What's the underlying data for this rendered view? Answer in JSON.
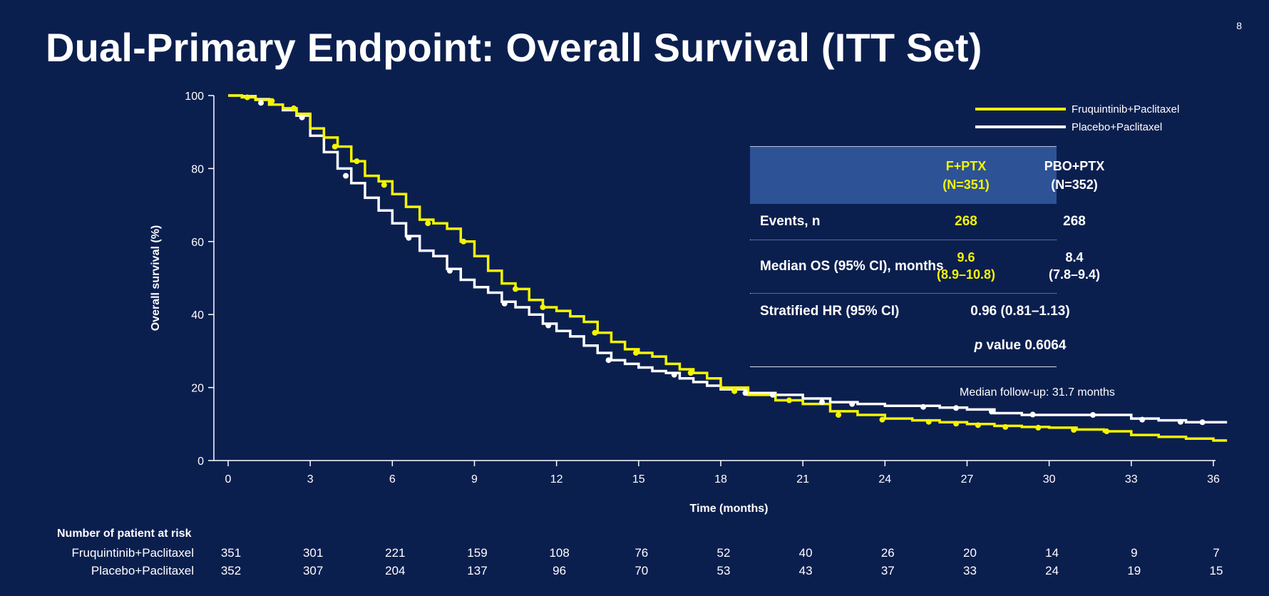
{
  "page_number": "8",
  "title": "Dual-Primary Endpoint: Overall Survival (ITT Set)",
  "colors": {
    "background": "#0b1f4f",
    "fruquintinib": "#f5f500",
    "placebo": "#ffffff",
    "table_header": "#2e5296"
  },
  "chart_data": {
    "type": "line",
    "subtype": "kaplan-meier step plot",
    "xlabel": "Time (months)",
    "ylabel": "Overall survival (%)",
    "xlim": [
      0,
      36.6
    ],
    "ylim": [
      0,
      100
    ],
    "xticks": [
      0,
      3,
      6,
      9,
      12,
      15,
      18,
      21,
      24,
      27,
      30,
      33,
      36
    ],
    "yticks": [
      0,
      20,
      40,
      60,
      80,
      100
    ],
    "legend": [
      "Fruquintinib+Paclitaxel",
      "Placebo+Paclitaxel"
    ],
    "legend_position": "top-right",
    "series": [
      {
        "name": "Fruquintinib+Paclitaxel",
        "color": "#f5f500",
        "x": [
          0,
          0.5,
          1,
          1.5,
          2,
          2.5,
          3,
          3.5,
          4,
          4.5,
          5,
          5.5,
          6,
          6.5,
          7,
          7.5,
          8,
          8.5,
          9,
          9.5,
          10,
          10.5,
          11,
          11.5,
          12,
          12.5,
          13,
          13.5,
          14,
          14.5,
          15,
          15.5,
          16,
          16.5,
          17,
          17.5,
          18,
          19,
          20,
          21,
          22,
          23,
          24,
          25,
          26,
          27,
          28,
          29,
          30,
          31,
          32,
          33,
          34,
          35,
          36,
          36.5
        ],
        "y": [
          100,
          99.5,
          98.8,
          97.5,
          96.5,
          95,
          91,
          88.5,
          86,
          82,
          78,
          76.5,
          73,
          69.5,
          66,
          65,
          63.5,
          60,
          56,
          52,
          48.5,
          47,
          44,
          42,
          41,
          39.5,
          38,
          35,
          32.5,
          30.5,
          29.5,
          28.5,
          26.5,
          25,
          24,
          22.5,
          20,
          18,
          16.5,
          15.5,
          13.5,
          12.5,
          11.5,
          11,
          10.5,
          10,
          9.5,
          9.2,
          9,
          8.5,
          8,
          7,
          6.5,
          6,
          5.5,
          5.5
        ]
      },
      {
        "name": "Placebo+Paclitaxel",
        "color": "#ffffff",
        "x": [
          0,
          0.5,
          1,
          1.5,
          2,
          2.5,
          3,
          3.5,
          4,
          4.5,
          5,
          5.5,
          6,
          6.5,
          7,
          7.5,
          8,
          8.5,
          9,
          9.5,
          10,
          10.5,
          11,
          11.5,
          12,
          12.5,
          13,
          13.5,
          14,
          14.5,
          15,
          15.5,
          16,
          16.5,
          17,
          17.5,
          18,
          19,
          20,
          21,
          22,
          23,
          24,
          25,
          26,
          27,
          28,
          29,
          30,
          31,
          32,
          33,
          34,
          35,
          36,
          36.5
        ],
        "y": [
          100,
          99.8,
          99,
          97.5,
          96,
          94.5,
          89,
          84.5,
          80,
          76,
          72,
          68.5,
          65,
          61.5,
          57.5,
          56,
          52.5,
          49.5,
          47.5,
          46,
          43.5,
          42,
          40,
          37.5,
          35.5,
          34,
          31.5,
          29.5,
          27.5,
          26.5,
          25.5,
          24.5,
          24,
          22.5,
          21.5,
          20.5,
          19.5,
          18.5,
          18,
          17,
          16,
          15.5,
          15,
          15,
          14.5,
          14,
          13,
          12.5,
          12.5,
          12.5,
          12.5,
          11.5,
          11,
          10.5,
          10.5,
          10.5
        ]
      }
    ],
    "censor_marks": [
      {
        "series": "Fruquintinib+Paclitaxel",
        "x": [
          0.7,
          1.6,
          2.4,
          3.9,
          4.7,
          5.7,
          7.3,
          8.6,
          10.5,
          11.5,
          13.4,
          14.9,
          16.9,
          18.5,
          20.5,
          22.3,
          23.9,
          25.6,
          26.6,
          27.4,
          28.4,
          29.6,
          30.9,
          32.1
        ],
        "y": [
          99.5,
          98.5,
          96.5,
          86,
          82,
          75.5,
          65,
          60,
          47,
          42,
          35,
          29.5,
          24,
          19,
          16.5,
          12.5,
          11.2,
          10.6,
          10.1,
          9.7,
          9.2,
          9,
          8.4,
          8
        ]
      },
      {
        "series": "Placebo+Paclitaxel",
        "x": [
          1.2,
          2.7,
          4.3,
          6.6,
          8.1,
          10.1,
          11.7,
          13.9,
          16.3,
          18.9,
          19.9,
          21.7,
          22.8,
          25.4,
          26.6,
          27.9,
          29.4,
          31.6,
          33.4,
          34.8,
          35.6
        ],
        "y": [
          98,
          94,
          78,
          61,
          52,
          43,
          37,
          27.5,
          23.5,
          18.5,
          18,
          16,
          15.5,
          14.7,
          14.4,
          13.4,
          12.6,
          12.5,
          11.2,
          10.6,
          10.5
        ]
      }
    ],
    "stats_table": {
      "headers": [
        [
          "F+PTX",
          "(N=351)"
        ],
        [
          "PBO+PTX",
          "(N=352)"
        ]
      ],
      "events_label": "Events, n",
      "events": [
        "268",
        "268"
      ],
      "median_label": "Median OS (95% CI), months",
      "median": [
        [
          "9.6",
          "(8.9–10.8)"
        ],
        [
          "8.4",
          "(7.8–9.4)"
        ]
      ],
      "hr_label": "Stratified HR (95% CI)",
      "hr": "0.96 (0.81–1.13)",
      "p_label": "p",
      "p_value": "value 0.6064"
    },
    "footnote": "Median follow-up: 31.7 months"
  },
  "at_risk": {
    "heading": "Number of patient at risk",
    "rows": [
      {
        "label": "Fruquintinib+Paclitaxel",
        "values": [
          "351",
          "301",
          "221",
          "159",
          "108",
          "76",
          "52",
          "40",
          "26",
          "20",
          "14",
          "9",
          "7"
        ]
      },
      {
        "label": "Placebo+Paclitaxel",
        "values": [
          "352",
          "307",
          "204",
          "137",
          "96",
          "70",
          "53",
          "43",
          "37",
          "33",
          "24",
          "19",
          "15"
        ]
      }
    ]
  }
}
